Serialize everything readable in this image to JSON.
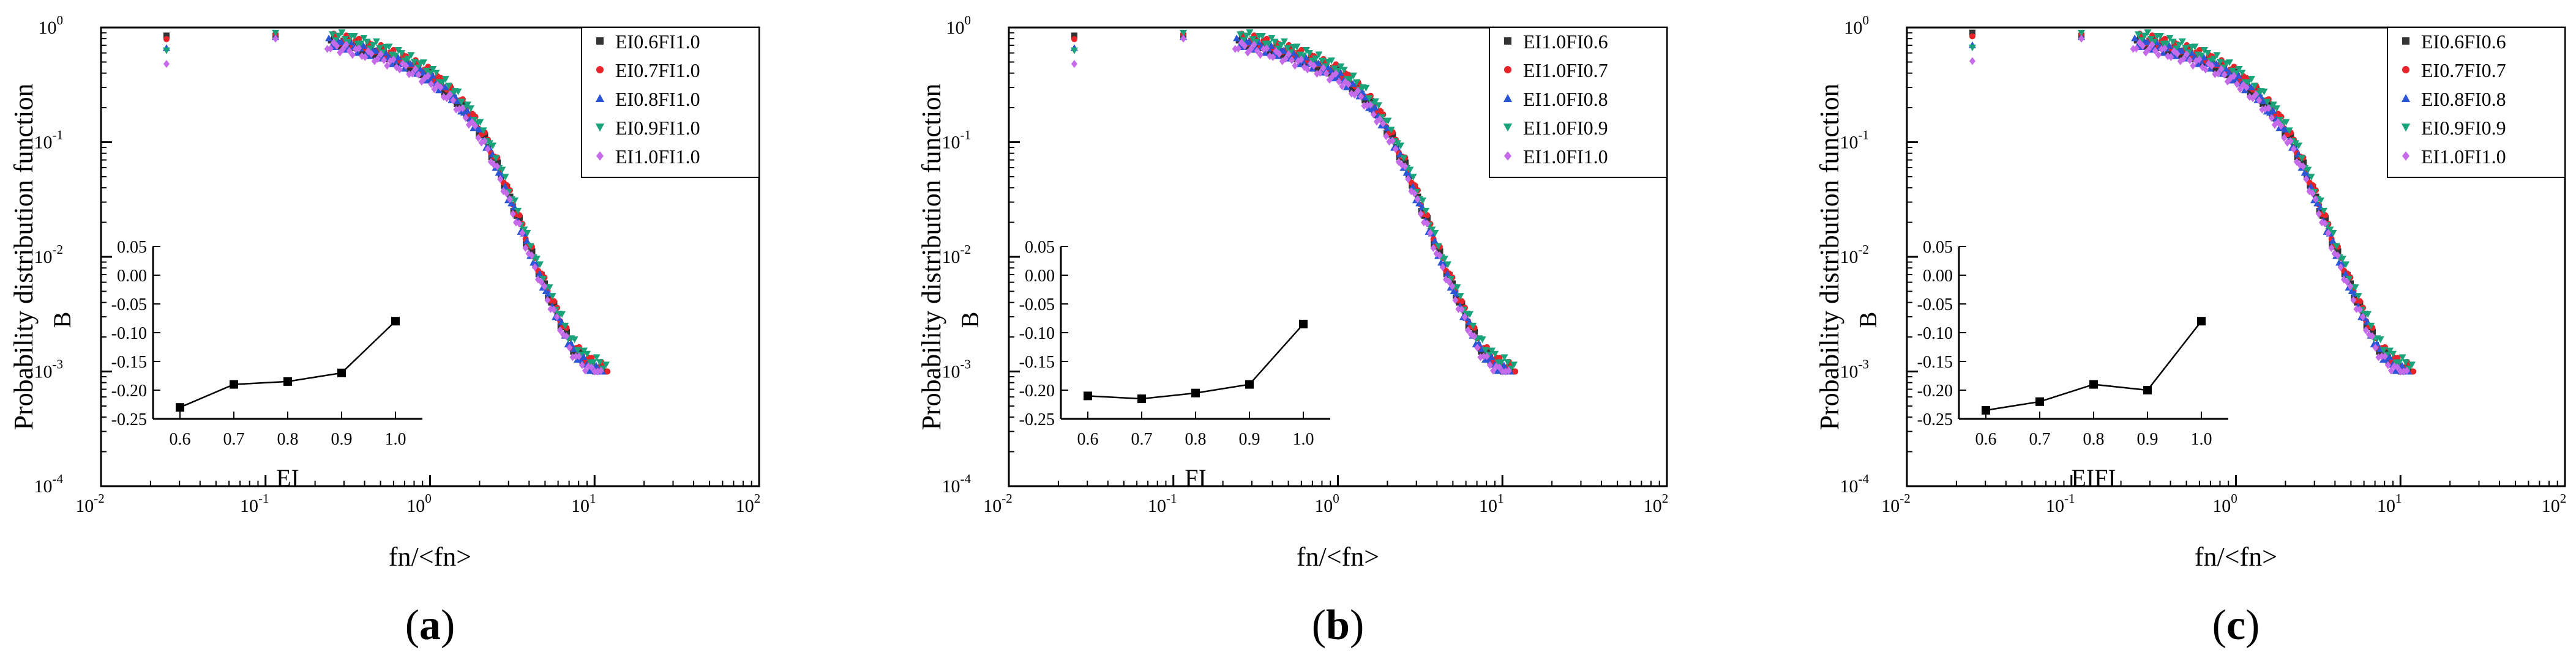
{
  "chart_data": [
    {
      "type": "scatter",
      "panel_label": "a",
      "xlabel": "fn/<fn>",
      "ylabel": "Probability distribution function",
      "xscale": "log",
      "yscale": "log",
      "xlim": [
        0.01,
        100
      ],
      "ylim": [
        0.0001,
        1
      ],
      "x_ticks": [
        "10",
        "10",
        "10",
        "10",
        "10"
      ],
      "x_tick_exponents": [
        "-2",
        "-1",
        "0",
        "1",
        "2"
      ],
      "y_ticks": [
        "10",
        "10",
        "10",
        "10",
        "10"
      ],
      "y_tick_exponents": [
        "-4",
        "-3",
        "-2",
        "-1",
        "0"
      ],
      "legend_position": "top-right",
      "series": [
        {
          "name": "EI0.6FI1.0",
          "color": "#333333",
          "marker": "square",
          "xscale": 1.0,
          "yjit": 0.0
        },
        {
          "name": "EI0.7FI1.0",
          "color": "#e8232a",
          "marker": "circle",
          "xscale": 1.04,
          "yjit": 0.03
        },
        {
          "name": "EI0.8FI1.0",
          "color": "#2a55d6",
          "marker": "triangle-up",
          "xscale": 0.97,
          "yjit": -0.02
        },
        {
          "name": "EI0.9FI1.0",
          "color": "#1aa37a",
          "marker": "triangle-down",
          "xscale": 1.02,
          "yjit": 0.05
        },
        {
          "name": "EI1.0FI1.0",
          "color": "#c56ae8",
          "marker": "diamond",
          "xscale": 0.95,
          "yjit": -0.05
        }
      ],
      "curve": {
        "x": [
          0.025,
          0.11,
          0.22,
          0.35,
          0.5,
          0.7,
          1.0,
          1.4,
          1.8,
          2.2,
          2.6,
          3.0,
          3.5,
          4.0,
          4.5,
          5.0,
          5.5,
          6.0,
          6.5,
          7.0,
          8.0,
          9.0,
          10.0,
          12.0
        ],
        "y": [
          0.85,
          0.85,
          0.8,
          0.7,
          0.6,
          0.5,
          0.38,
          0.25,
          0.16,
          0.1,
          0.06,
          0.035,
          0.02,
          0.012,
          0.008,
          0.0055,
          0.004,
          0.003,
          0.0024,
          0.0018,
          0.0014,
          0.0012,
          0.0011,
          0.001
        ]
      },
      "inset": {
        "xlabel": "EI",
        "ylabel": "B",
        "x": [
          0.6,
          0.7,
          0.8,
          0.9,
          1.0
        ],
        "y": [
          -0.23,
          -0.19,
          -0.185,
          -0.17,
          -0.08
        ],
        "xlim": [
          0.55,
          1.05
        ],
        "ylim": [
          -0.25,
          0.05
        ],
        "x_ticks": [
          "0.6",
          "0.7",
          "0.8",
          "0.9",
          "1.0"
        ],
        "y_ticks": [
          "0.05",
          "0.00",
          "-0.05",
          "-0.10",
          "-0.15",
          "-0.20",
          "-0.25"
        ]
      }
    },
    {
      "type": "scatter",
      "panel_label": "b",
      "xlabel": "fn/<fn>",
      "ylabel": "Probability distribution function",
      "xscale": "log",
      "yscale": "log",
      "xlim": [
        0.01,
        100
      ],
      "ylim": [
        0.0001,
        1
      ],
      "x_ticks": [
        "10",
        "10",
        "10",
        "10",
        "10"
      ],
      "x_tick_exponents": [
        "-2",
        "-1",
        "0",
        "1",
        "2"
      ],
      "y_ticks": [
        "10",
        "10",
        "10",
        "10",
        "10"
      ],
      "y_tick_exponents": [
        "-4",
        "-3",
        "-2",
        "-1",
        "0"
      ],
      "legend_position": "top-right",
      "series": [
        {
          "name": "EI1.0FI0.6",
          "color": "#333333",
          "marker": "square",
          "xscale": 1.0,
          "yjit": 0.0
        },
        {
          "name": "EI1.0FI0.7",
          "color": "#e8232a",
          "marker": "circle",
          "xscale": 1.04,
          "yjit": 0.03
        },
        {
          "name": "EI1.0FI0.8",
          "color": "#2a55d6",
          "marker": "triangle-up",
          "xscale": 0.97,
          "yjit": -0.02
        },
        {
          "name": "EI1.0FI0.9",
          "color": "#1aa37a",
          "marker": "triangle-down",
          "xscale": 1.02,
          "yjit": 0.05
        },
        {
          "name": "EI1.0FI1.0",
          "color": "#c56ae8",
          "marker": "diamond",
          "xscale": 0.95,
          "yjit": -0.05
        }
      ],
      "curve": {
        "x": [
          0.025,
          0.11,
          0.22,
          0.35,
          0.5,
          0.7,
          1.0,
          1.4,
          1.8,
          2.2,
          2.6,
          3.0,
          3.5,
          4.0,
          4.5,
          5.0,
          5.5,
          6.0,
          6.5,
          7.0,
          8.0,
          9.0,
          10.0,
          12.0
        ],
        "y": [
          0.85,
          0.85,
          0.8,
          0.7,
          0.6,
          0.5,
          0.4,
          0.27,
          0.17,
          0.1,
          0.06,
          0.035,
          0.02,
          0.012,
          0.008,
          0.0055,
          0.004,
          0.003,
          0.0024,
          0.0018,
          0.0014,
          0.0012,
          0.0011,
          0.001
        ]
      },
      "inset": {
        "xlabel": "FI",
        "ylabel": "B",
        "x": [
          0.6,
          0.7,
          0.8,
          0.9,
          1.0
        ],
        "y": [
          -0.21,
          -0.215,
          -0.205,
          -0.19,
          -0.085
        ],
        "xlim": [
          0.55,
          1.05
        ],
        "ylim": [
          -0.25,
          0.05
        ],
        "x_ticks": [
          "0.6",
          "0.7",
          "0.8",
          "0.9",
          "1.0"
        ],
        "y_ticks": [
          "0.05",
          "0.00",
          "-0.05",
          "-0.10",
          "-0.15",
          "-0.20",
          "-0.25"
        ]
      }
    },
    {
      "type": "scatter",
      "panel_label": "c",
      "xlabel": "fn/<fn>",
      "ylabel": "Probability distribution function",
      "xscale": "log",
      "yscale": "log",
      "xlim": [
        0.01,
        100
      ],
      "ylim": [
        0.0001,
        1
      ],
      "x_ticks": [
        "10",
        "10",
        "10",
        "10",
        "10"
      ],
      "x_tick_exponents": [
        "-2",
        "-1",
        "0",
        "1",
        "2"
      ],
      "y_ticks": [
        "10",
        "10",
        "10",
        "10",
        "10"
      ],
      "y_tick_exponents": [
        "-4",
        "-3",
        "-2",
        "-1",
        "0"
      ],
      "legend_position": "top-right",
      "series": [
        {
          "name": "EI0.6FI0.6",
          "color": "#333333",
          "marker": "square",
          "xscale": 1.0,
          "yjit": 0.0
        },
        {
          "name": "EI0.7FI0.7",
          "color": "#e8232a",
          "marker": "circle",
          "xscale": 1.04,
          "yjit": 0.03
        },
        {
          "name": "EI0.8FI0.8",
          "color": "#2a55d6",
          "marker": "triangle-up",
          "xscale": 0.97,
          "yjit": -0.02
        },
        {
          "name": "EI0.9FI0.9",
          "color": "#1aa37a",
          "marker": "triangle-down",
          "xscale": 1.02,
          "yjit": 0.05
        },
        {
          "name": "EI1.0FI1.0",
          "color": "#c56ae8",
          "marker": "diamond",
          "xscale": 0.95,
          "yjit": -0.05
        }
      ],
      "curve": {
        "x": [
          0.025,
          0.11,
          0.22,
          0.35,
          0.5,
          0.7,
          1.0,
          1.4,
          1.8,
          2.2,
          2.6,
          3.0,
          3.5,
          4.0,
          4.5,
          5.0,
          5.5,
          6.0,
          6.5,
          7.0,
          8.0,
          9.0,
          10.0,
          12.0
        ],
        "y": [
          0.9,
          0.85,
          0.8,
          0.7,
          0.6,
          0.5,
          0.38,
          0.25,
          0.16,
          0.1,
          0.06,
          0.035,
          0.02,
          0.012,
          0.008,
          0.0055,
          0.004,
          0.003,
          0.0024,
          0.0018,
          0.0014,
          0.0012,
          0.0011,
          0.001
        ]
      },
      "inset": {
        "xlabel": "EIFI",
        "ylabel": "B",
        "x": [
          0.6,
          0.7,
          0.8,
          0.9,
          1.0
        ],
        "y": [
          -0.235,
          -0.22,
          -0.19,
          -0.2,
          -0.08
        ],
        "xlim": [
          0.55,
          1.05
        ],
        "ylim": [
          -0.25,
          0.05
        ],
        "x_ticks": [
          "0.6",
          "0.7",
          "0.8",
          "0.9",
          "1.0"
        ],
        "y_ticks": [
          "0.05",
          "0.00",
          "-0.05",
          "-0.10",
          "-0.15",
          "-0.20",
          "-0.25"
        ]
      }
    }
  ]
}
